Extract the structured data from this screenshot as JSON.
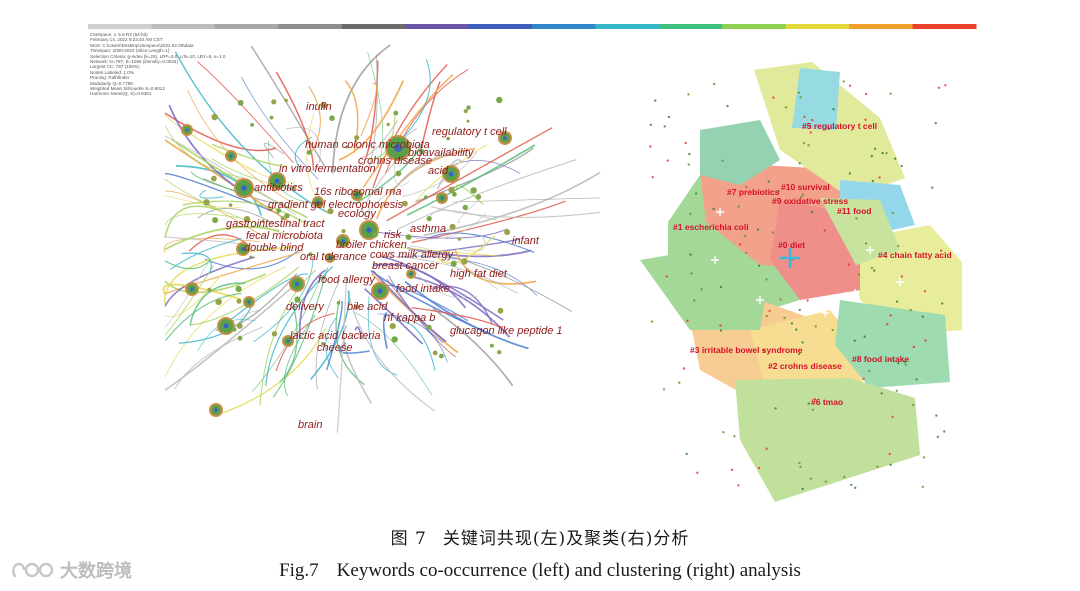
{
  "figure": {
    "caption_cn_number": "图 7",
    "caption_cn_text": "关键词共现(左)及聚类(右)分析",
    "caption_en_number": "Fig.7",
    "caption_en_text": "Keywords co-occurrence (left) and clustering (right) analysis",
    "watermark": "大数跨境",
    "color_bar": [
      "#d0d0d0",
      "#bdbdbd",
      "#a8a8a8",
      "#8f8f8f",
      "#6b6b6b",
      "#6a55a8",
      "#3f5fbf",
      "#2f86c8",
      "#33b7c9",
      "#3fbf7f",
      "#8fd14f",
      "#e3d93b",
      "#f2a02c",
      "#e8402a"
    ],
    "left_panel": {
      "metadata": [
        "CiteSpace, v. 5.8.R3 (64-bit)",
        "February 14, 2022 9:23:40 AM CST",
        "WoS: C:\\Users\\Desktop\\citespace\\2022.02.09\\data",
        "Timespan: 2000-2022 (Slice Length=1)",
        "Selection Criteria: g-index (k=25), LRF=3.0, L/N=10, LBY=5, e=1.0",
        "Network: N=787, E=1055 (Density=0.0034)",
        "Largest CC: 787 (100%)",
        "Nodes Labeled: 1.0%",
        "Pruning: Pathfinder",
        "Modularity Q=0.7788",
        "Weighted Mean Silhouette S=0.9012",
        "Harmonic Mean(Q, S)=0.8361"
      ],
      "keywords": [
        "inulin",
        "regulatory t cell",
        "human colonic microbiota",
        "bioavailability",
        "crohns disease",
        "in vitro fermentation",
        "acid",
        "antibiotics",
        "16s ribosomal rna",
        "gradient gel electrophoresis",
        "ecology",
        "gastrointestinal tract",
        "fecal microbiota",
        "risk",
        "asthma",
        "broiler chicken",
        "infant",
        "double blind",
        "oral tolerance",
        "cows milk allergy",
        "breast cancer",
        "high fat diet",
        "food allergy",
        "food intake",
        "delivery",
        "bile acid",
        "nf kappa b",
        "glucagon like peptide 1",
        "lactic acid bacteria",
        "cheese",
        "brain"
      ]
    },
    "right_panel": {
      "clusters": [
        {
          "label": "#5 regulatory t cell",
          "color": "#c9d94a"
        },
        {
          "label": "#7 prebiotics",
          "color": "#e8552e"
        },
        {
          "label": "#10 survival",
          "color": "#4fbf8f"
        },
        {
          "label": "#9 oxidative stress",
          "color": "#9acd4f"
        },
        {
          "label": "#11 food",
          "color": "#3fb7d9"
        },
        {
          "label": "#1 escherichia coli",
          "color": "#58b947"
        },
        {
          "label": "#0 diet",
          "color": "#e2342a"
        },
        {
          "label": "#4 chain fatty acid",
          "color": "#d6e04a"
        },
        {
          "label": "#3 irritable bowel syndrome",
          "color": "#f2a33a"
        },
        {
          "label": "#2 crohns disease",
          "color": "#f0c23a"
        },
        {
          "label": "#8 food intake",
          "color": "#4fbf73"
        },
        {
          "label": "#6 tmao",
          "color": "#8fc84a"
        }
      ]
    }
  }
}
